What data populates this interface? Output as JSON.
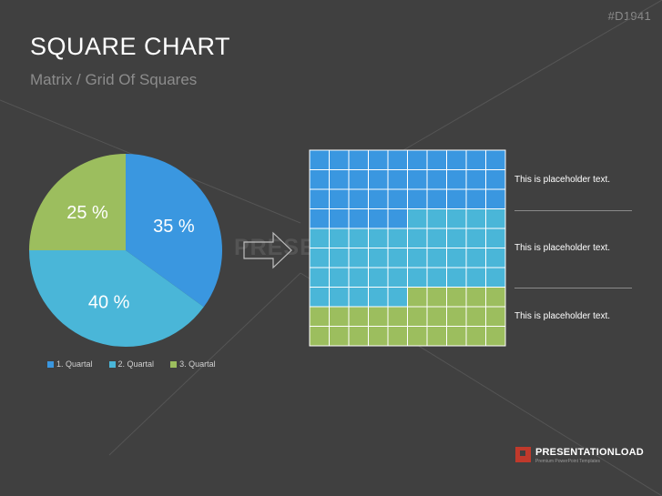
{
  "slide": {
    "code": "#D1941",
    "title": "SQUARE CHART",
    "subtitle": "Matrix / Grid Of Squares",
    "watermark": "PRESENTATIONLOAD",
    "brand": {
      "name": "PRESENTATIONLOAD",
      "tagline": "Premium PowerPoint Templates"
    }
  },
  "chart_data": [
    {
      "type": "pie",
      "title": "",
      "categories": [
        "1. Quartal",
        "2. Quartal",
        "3. Quartal"
      ],
      "values": [
        35,
        40,
        25
      ],
      "data_labels": [
        "35 %",
        "40 %",
        "25 %"
      ],
      "colors": [
        "#3a97e0",
        "#4ab6d8",
        "#9cbe5e"
      ],
      "legend_position": "bottom"
    },
    {
      "type": "heatmap",
      "title": "",
      "rows": 10,
      "cols": 10,
      "categories": [
        "1. Quartal",
        "2. Quartal",
        "3. Quartal"
      ],
      "values": [
        35,
        40,
        25
      ],
      "colors": [
        "#3a97e0",
        "#4ab6d8",
        "#9cbe5e"
      ],
      "grid": true
    }
  ],
  "notes": [
    "This is placeholder text.",
    "This is placeholder text.",
    "This is placeholder text."
  ],
  "colors": {
    "background": "#404040",
    "gridline": "#ffffff"
  }
}
